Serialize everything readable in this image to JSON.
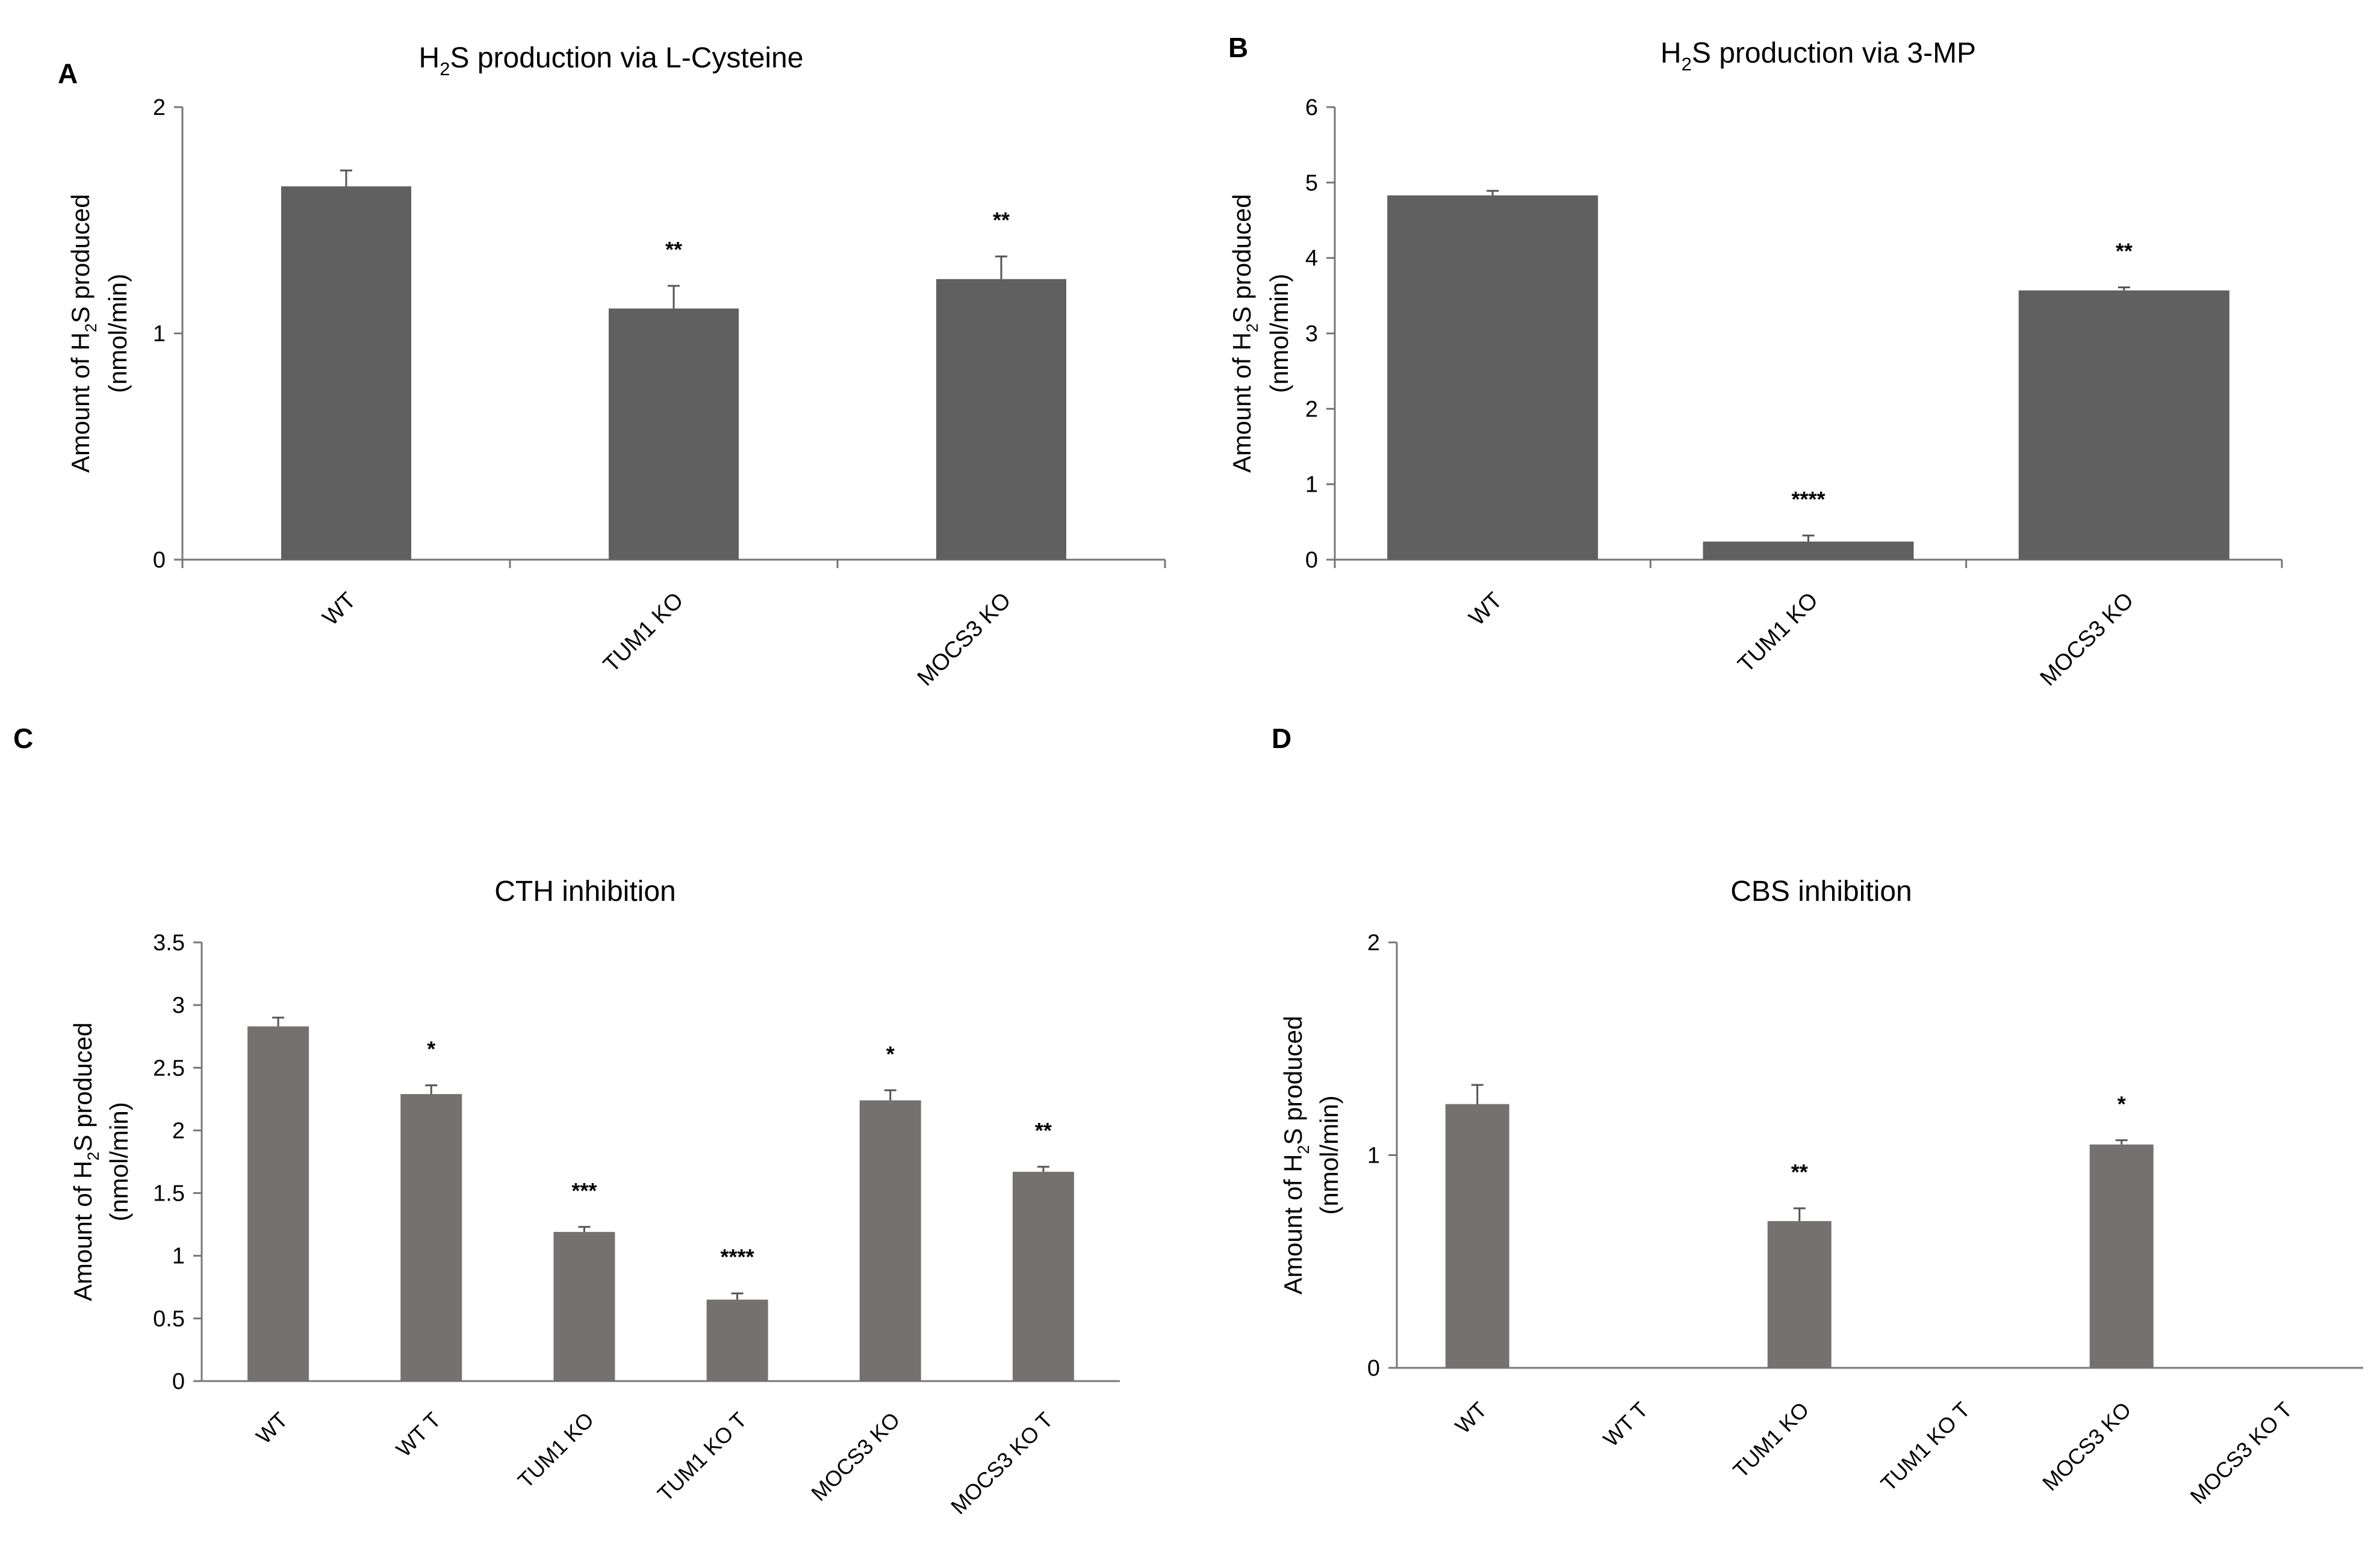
{
  "panels": [
    {
      "letter": "A"
    },
    {
      "letter": "B"
    },
    {
      "letter": "C"
    },
    {
      "letter": "D"
    }
  ],
  "chart_data": [
    {
      "type": "bar",
      "panel": "A",
      "title": "H2S production via L-Cysteine",
      "title_parts": {
        "pre": "H",
        "sub": "2",
        "post": "S production via L-Cysteine"
      },
      "ylabel": "Amount of H2S produced",
      "ylabel_parts": {
        "pre": "Amount of H",
        "sub": "2",
        "post": "S produced"
      },
      "ylabel_line2": "(nmol/min)",
      "categories": [
        "WT",
        "TUM1 KO",
        "MOCS3 KO"
      ],
      "values": [
        1.65,
        1.11,
        1.24
      ],
      "errors": [
        0.07,
        0.1,
        0.1
      ],
      "significance": [
        "",
        "**",
        "**"
      ],
      "ylim": [
        0,
        2
      ],
      "yticks": [
        0,
        1,
        2
      ],
      "ytick_labels": [
        "0",
        "1",
        "2"
      ],
      "bar_color": "#606060"
    },
    {
      "type": "bar",
      "panel": "B",
      "title": "H2S production via 3-MP",
      "title_parts": {
        "pre": "H",
        "sub": "2",
        "post": "S production via 3-MP"
      },
      "ylabel": "Amount of H2S produced",
      "ylabel_parts": {
        "pre": "Amount of H",
        "sub": "2",
        "post": "S produced"
      },
      "ylabel_line2": "(nmol/min)",
      "categories": [
        "WT",
        "TUM1 KO",
        "MOCS3 KO"
      ],
      "values": [
        4.83,
        0.24,
        3.57
      ],
      "errors": [
        0.06,
        0.08,
        0.04
      ],
      "significance": [
        "",
        "****",
        "**"
      ],
      "ylim": [
        0,
        6
      ],
      "yticks": [
        0,
        1,
        2,
        3,
        4,
        5,
        6
      ],
      "ytick_labels": [
        "0",
        "1",
        "2",
        "3",
        "4",
        "5",
        "6"
      ],
      "bar_color": "#606060"
    },
    {
      "type": "bar",
      "panel": "C",
      "title": "CTH inhibition",
      "ylabel": "Amount of H2S produced",
      "ylabel_parts": {
        "pre": "Amount of H",
        "sub": "2",
        "post": "S produced"
      },
      "ylabel_line2": "(nmol/min)",
      "categories": [
        "WT",
        "WT T",
        "TUM1 KO",
        "TUM1 KO T",
        "MOCS3 KO",
        "MOCS3 KO T"
      ],
      "values": [
        2.83,
        2.29,
        1.19,
        0.65,
        2.24,
        1.67
      ],
      "errors": [
        0.07,
        0.07,
        0.04,
        0.05,
        0.08,
        0.04
      ],
      "significance": [
        "",
        "*",
        "***",
        "****",
        "*",
        "**"
      ],
      "ylim": [
        0,
        3.5
      ],
      "yticks": [
        0,
        0.5,
        1,
        1.5,
        2,
        2.5,
        3,
        3.5
      ],
      "ytick_labels": [
        "0",
        "0.5",
        "1",
        "1.5",
        "2",
        "2.5",
        "3",
        "3.5"
      ],
      "bar_color": "#767171"
    },
    {
      "type": "bar",
      "panel": "D",
      "title": "CBS inhibition",
      "ylabel": "Amount of H2S produced",
      "ylabel_parts": {
        "pre": "Amount of H",
        "sub": "2",
        "post": "S produced"
      },
      "ylabel_line2": "(nmol/min)",
      "categories": [
        "WT",
        "WT T",
        "TUM1 KO",
        "TUM1 KO T",
        "MOCS3 KO",
        "MOCS3 KO T"
      ],
      "values": [
        1.24,
        0,
        0.69,
        0,
        1.05,
        0
      ],
      "errors": [
        0.09,
        0,
        0.06,
        0,
        0.02,
        0
      ],
      "significance": [
        "",
        "",
        "**",
        "",
        "*",
        ""
      ],
      "ylim": [
        0,
        2
      ],
      "yticks": [
        0,
        1,
        2
      ],
      "ytick_labels": [
        "0",
        "1",
        "2"
      ],
      "bar_color": "#767171"
    }
  ]
}
